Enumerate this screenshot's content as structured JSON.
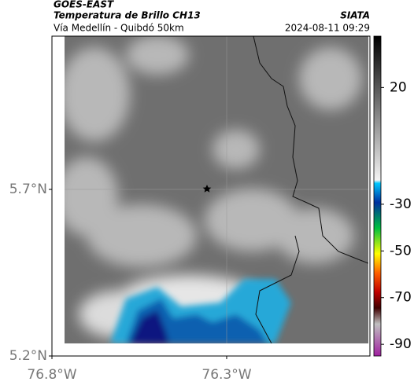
{
  "header": {
    "title": "GOES-EAST",
    "subtitle": "Temperatura de Brillo CH13",
    "route": "Vía Medellín - Quibdó 50km",
    "source": "SIATA",
    "timestamp": "2024-08-11 09:29"
  },
  "map": {
    "xlim": [
      -76.8,
      -75.89
    ],
    "ylim": [
      5.2,
      6.16
    ],
    "xticks": [
      {
        "value": -76.8,
        "label": "76.8°W"
      },
      {
        "value": -76.3,
        "label": "76.3°W"
      }
    ],
    "yticks": [
      {
        "value": 5.2,
        "label": "5.2°N"
      },
      {
        "value": 5.7,
        "label": "5.7°N"
      }
    ]
  },
  "colorbar": {
    "clim": [
      -95,
      42
    ],
    "ticks": [
      20,
      -30,
      -50,
      -70,
      -90
    ]
  }
}
